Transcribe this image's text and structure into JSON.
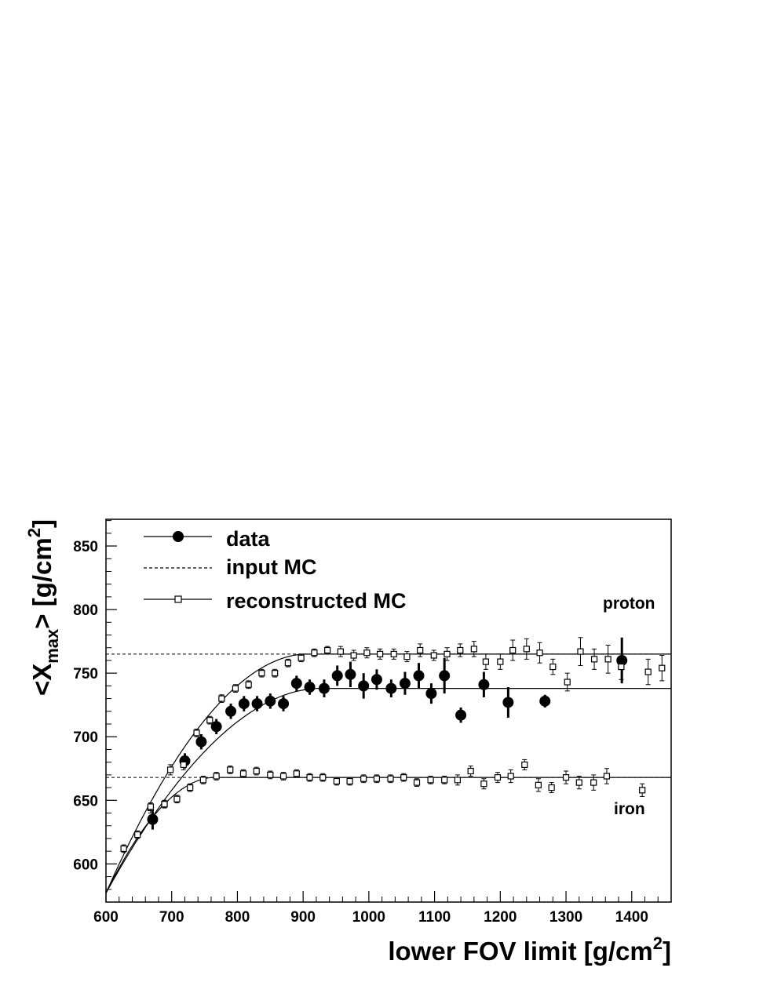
{
  "chart_data": {
    "type": "scatter",
    "xlabel_main": "lower FOV limit [g/cm",
    "xlabel_sup": "2",
    "xlabel_end": "]",
    "ylabel_main": "<X",
    "ylabel_sub": "max",
    "ylabel_mid": "> [g/cm",
    "ylabel_sup": "2",
    "ylabel_end": "]",
    "xlim": [
      600,
      1460
    ],
    "ylim": [
      570,
      871
    ],
    "xticks": [
      600,
      700,
      800,
      900,
      1000,
      1100,
      1200,
      1300,
      1400
    ],
    "yticks": [
      600,
      650,
      700,
      750,
      800,
      850
    ],
    "grid": false,
    "legend_position": "top-left",
    "legend": {
      "data": "data",
      "input": "input MC",
      "reco": "reconstructed MC"
    },
    "annotations": {
      "proton": "proton",
      "iron": "iron"
    },
    "input_mc": {
      "proton_level": 765,
      "iron_level": 668
    },
    "fits": {
      "proton": {
        "plateau": 765,
        "y_at_600": 577,
        "knee": 905
      },
      "data": {
        "plateau": 738,
        "y_at_600": 577,
        "knee": 925
      },
      "iron": {
        "plateau": 668,
        "y_at_600": 577,
        "knee": 765
      }
    },
    "series": [
      {
        "name": "data",
        "marker": "filled-circle",
        "points": [
          [
            671,
            635,
            8
          ],
          [
            720,
            681,
            6
          ],
          [
            745,
            696,
            6
          ],
          [
            768,
            708,
            6
          ],
          [
            790,
            720,
            6
          ],
          [
            810,
            726,
            6
          ],
          [
            830,
            726,
            6
          ],
          [
            850,
            728,
            6
          ],
          [
            870,
            726,
            6
          ],
          [
            890,
            742,
            6
          ],
          [
            910,
            739,
            6
          ],
          [
            932,
            738,
            7
          ],
          [
            952,
            748,
            8
          ],
          [
            972,
            749,
            10
          ],
          [
            992,
            740,
            10
          ],
          [
            1012,
            745,
            8
          ],
          [
            1034,
            738,
            7
          ],
          [
            1055,
            742,
            9
          ],
          [
            1076,
            748,
            10
          ],
          [
            1095,
            734,
            8
          ],
          [
            1115,
            748,
            14
          ],
          [
            1140,
            717,
            6
          ],
          [
            1175,
            741,
            10
          ],
          [
            1212,
            727,
            12
          ],
          [
            1268,
            728,
            5
          ],
          [
            1385,
            760,
            18
          ]
        ]
      },
      {
        "name": "reconstructed MC (proton)",
        "marker": "open-square",
        "points": [
          [
            627,
            612,
            3
          ],
          [
            648,
            623,
            3
          ],
          [
            668,
            644,
            4
          ],
          [
            689,
            647,
            3
          ],
          [
            698,
            674,
            4
          ],
          [
            718,
            678,
            4
          ],
          [
            738,
            703,
            3
          ],
          [
            758,
            713,
            3
          ],
          [
            776,
            730,
            3
          ],
          [
            797,
            738,
            3
          ],
          [
            817,
            741,
            3
          ],
          [
            837,
            750,
            3
          ],
          [
            857,
            750,
            3
          ],
          [
            877,
            758,
            3
          ],
          [
            897,
            762,
            3
          ],
          [
            917,
            766,
            3
          ],
          [
            937,
            768,
            3
          ],
          [
            957,
            767,
            4
          ],
          [
            977,
            764,
            4
          ],
          [
            997,
            766,
            4
          ],
          [
            1017,
            765,
            4
          ],
          [
            1038,
            765,
            4
          ],
          [
            1058,
            763,
            4
          ],
          [
            1078,
            768,
            5
          ],
          [
            1099,
            764,
            4
          ],
          [
            1119,
            765,
            5
          ],
          [
            1139,
            768,
            5
          ],
          [
            1160,
            769,
            6
          ],
          [
            1178,
            759,
            6
          ],
          [
            1200,
            759,
            6
          ],
          [
            1219,
            768,
            8
          ],
          [
            1240,
            769,
            8
          ],
          [
            1260,
            766,
            8
          ],
          [
            1280,
            755,
            6
          ],
          [
            1302,
            743,
            7
          ],
          [
            1322,
            767,
            11
          ],
          [
            1343,
            761,
            8
          ],
          [
            1364,
            761,
            11
          ],
          [
            1384,
            755,
            10
          ],
          [
            1425,
            751,
            10
          ],
          [
            1446,
            754,
            10
          ]
        ]
      },
      {
        "name": "reconstructed MC (iron)",
        "marker": "open-square",
        "points": [
          [
            668,
            645,
            3
          ],
          [
            689,
            647,
            3
          ],
          [
            708,
            651,
            3
          ],
          [
            728,
            660,
            3
          ],
          [
            748,
            666,
            3
          ],
          [
            768,
            669,
            3
          ],
          [
            789,
            674,
            3
          ],
          [
            809,
            671,
            3
          ],
          [
            829,
            673,
            3
          ],
          [
            850,
            670,
            3
          ],
          [
            870,
            669,
            3
          ],
          [
            890,
            671,
            3
          ],
          [
            910,
            668,
            3
          ],
          [
            930,
            668,
            3
          ],
          [
            951,
            665,
            3
          ],
          [
            971,
            665,
            3
          ],
          [
            992,
            667,
            3
          ],
          [
            1012,
            667,
            3
          ],
          [
            1033,
            667,
            3
          ],
          [
            1053,
            668,
            3
          ],
          [
            1073,
            664,
            3
          ],
          [
            1094,
            666,
            3
          ],
          [
            1115,
            666,
            3
          ],
          [
            1135,
            666,
            4
          ],
          [
            1155,
            673,
            4
          ],
          [
            1175,
            663,
            4
          ],
          [
            1196,
            668,
            4
          ],
          [
            1216,
            669,
            5
          ],
          [
            1237,
            678,
            4
          ],
          [
            1258,
            662,
            5
          ],
          [
            1278,
            660,
            4
          ],
          [
            1300,
            668,
            5
          ],
          [
            1320,
            664,
            5
          ],
          [
            1342,
            664,
            6
          ],
          [
            1362,
            669,
            6
          ],
          [
            1416,
            658,
            5
          ]
        ]
      }
    ]
  }
}
